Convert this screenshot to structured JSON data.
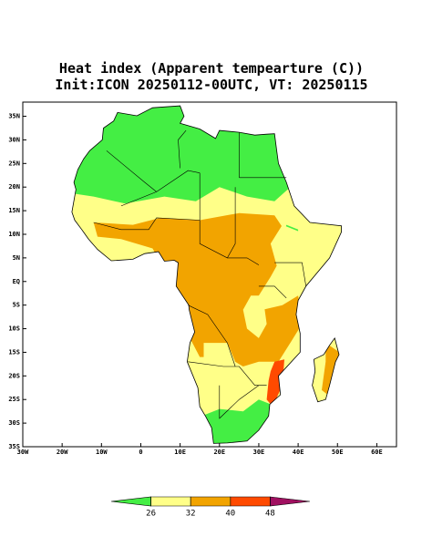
{
  "map": {
    "title": "Heat index (Apparent tempearture (C))",
    "subtitle": "Init:ICON 20250112-00UTC, VT: 20250115",
    "xlim": [
      -30,
      65
    ],
    "ylim": [
      -35,
      38
    ],
    "xticks": [
      {
        "value": -30,
        "label": "30W"
      },
      {
        "value": -20,
        "label": "20W"
      },
      {
        "value": -10,
        "label": "10W"
      },
      0,
      {
        "value": 10,
        "label": "10E"
      },
      {
        "value": 20,
        "label": "20E"
      },
      {
        "value": 30,
        "label": "30E"
      },
      {
        "value": 40,
        "label": "40E"
      },
      {
        "value": 50,
        "label": "50E"
      },
      {
        "value": 60,
        "label": "60E"
      }
    ],
    "yticks": [
      {
        "value": 35,
        "label": "35N"
      },
      {
        "value": 30,
        "label": "30N"
      },
      {
        "value": 25,
        "label": "25N"
      },
      {
        "value": 20,
        "label": "20N"
      },
      {
        "value": 15,
        "label": "15N"
      },
      {
        "value": 10,
        "label": "10N"
      },
      {
        "value": 5,
        "label": "5N"
      },
      {
        "value": 0,
        "label": "EQ"
      },
      {
        "value": -5,
        "label": "5S"
      },
      {
        "value": -10,
        "label": "10S"
      },
      {
        "value": -15,
        "label": "15S"
      },
      {
        "value": -20,
        "label": "20S"
      },
      {
        "value": -25,
        "label": "25S"
      },
      {
        "value": -30,
        "label": "30S"
      },
      {
        "value": -35,
        "label": "35S"
      }
    ],
    "colorbar": {
      "levels": [
        26,
        32,
        40,
        48
      ],
      "colors": [
        "#44ee44",
        "#ffff88",
        "#f2a400",
        "#ff4a00",
        "#a01060"
      ]
    }
  }
}
